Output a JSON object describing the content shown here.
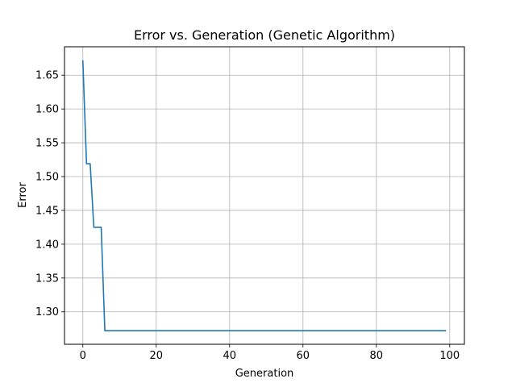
{
  "chart_data": {
    "type": "line",
    "title": "Error vs. Generation (Genetic Algorithm)",
    "xlabel": "Generation",
    "ylabel": "Error",
    "xlim": [
      -5,
      104
    ],
    "ylim": [
      1.252,
      1.692
    ],
    "x_ticks": [
      0,
      20,
      40,
      60,
      80,
      100
    ],
    "y_ticks": [
      1.3,
      1.35,
      1.4,
      1.45,
      1.5,
      1.55,
      1.6,
      1.65
    ],
    "x_tick_labels": [
      "0",
      "20",
      "40",
      "60",
      "80",
      "100"
    ],
    "y_tick_labels": [
      "1.30",
      "1.35",
      "1.40",
      "1.45",
      "1.50",
      "1.55",
      "1.60",
      "1.65"
    ],
    "grid": true,
    "line_color": "#1f77b4",
    "series": [
      {
        "x": [
          0,
          1,
          2,
          3,
          4,
          5,
          6,
          7,
          8,
          9,
          10,
          11,
          12,
          13,
          14,
          15,
          16,
          17,
          18,
          19,
          20,
          21,
          22,
          23,
          24,
          25,
          26,
          27,
          28,
          29,
          30,
          31,
          32,
          33,
          34,
          35,
          36,
          37,
          38,
          39,
          40,
          41,
          42,
          43,
          44,
          45,
          46,
          47,
          48,
          49,
          50,
          51,
          52,
          53,
          54,
          55,
          56,
          57,
          58,
          59,
          60,
          61,
          62,
          63,
          64,
          65,
          66,
          67,
          68,
          69,
          70,
          71,
          72,
          73,
          74,
          75,
          76,
          77,
          78,
          79,
          80,
          81,
          82,
          83,
          84,
          85,
          86,
          87,
          88,
          89,
          90,
          91,
          92,
          93,
          94,
          95,
          96,
          97,
          98,
          99
        ],
        "values": [
          1.672,
          1.519,
          1.519,
          1.425,
          1.425,
          1.425,
          1.272,
          1.272,
          1.272,
          1.272,
          1.272,
          1.272,
          1.272,
          1.272,
          1.272,
          1.272,
          1.272,
          1.272,
          1.272,
          1.272,
          1.272,
          1.272,
          1.272,
          1.272,
          1.272,
          1.272,
          1.272,
          1.272,
          1.272,
          1.272,
          1.272,
          1.272,
          1.272,
          1.272,
          1.272,
          1.272,
          1.272,
          1.272,
          1.272,
          1.272,
          1.272,
          1.272,
          1.272,
          1.272,
          1.272,
          1.272,
          1.272,
          1.272,
          1.272,
          1.272,
          1.272,
          1.272,
          1.272,
          1.272,
          1.272,
          1.272,
          1.272,
          1.272,
          1.272,
          1.272,
          1.272,
          1.272,
          1.272,
          1.272,
          1.272,
          1.272,
          1.272,
          1.272,
          1.272,
          1.272,
          1.272,
          1.272,
          1.272,
          1.272,
          1.272,
          1.272,
          1.272,
          1.272,
          1.272,
          1.272,
          1.272,
          1.272,
          1.272,
          1.272,
          1.272,
          1.272,
          1.272,
          1.272,
          1.272,
          1.272,
          1.272,
          1.272,
          1.272,
          1.272,
          1.272,
          1.272,
          1.272,
          1.272,
          1.272,
          1.272
        ]
      }
    ]
  }
}
